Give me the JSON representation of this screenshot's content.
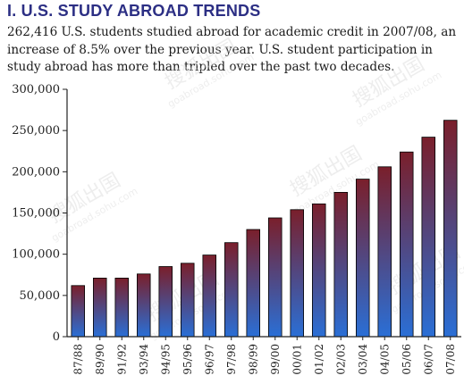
{
  "header": {
    "heading": "I.  U.S. STUDY ABROAD TRENDS",
    "intro": "262,416 U.S. students studied abroad for academic credit in 2007/08, an increase of 8.5% over the previous year.  U.S. student participation in study abroad has more than tripled over the past two decades."
  },
  "watermark": {
    "cn": "搜狐出国",
    "url": "goabroad.sohu.com"
  },
  "colors": {
    "bar_top": "#7a1f2b",
    "bar_bottom": "#2a6fd6",
    "axis": "#222222",
    "title": "#2c2f84"
  },
  "chart_data": {
    "type": "bar",
    "title": "",
    "xlabel": "",
    "ylabel": "",
    "ylim": [
      0,
      300000
    ],
    "yticks": [
      0,
      50000,
      100000,
      150000,
      200000,
      250000,
      300000
    ],
    "ytick_labels": [
      "0",
      "50,000",
      "100,000",
      "150,000",
      "200,000",
      "250,000",
      "300,000"
    ],
    "grid": false,
    "categories": [
      "87/88",
      "89/90",
      "91/92",
      "93/94",
      "94/95",
      "95/96",
      "96/97",
      "97/98",
      "98/99",
      "99/00",
      "00/01",
      "01/02",
      "02/03",
      "03/04",
      "04/05",
      "05/06",
      "06/07",
      "07/08"
    ],
    "values": [
      62000,
      71000,
      71000,
      76000,
      85000,
      89000,
      99000,
      114000,
      130000,
      144000,
      154000,
      161000,
      175000,
      191000,
      206000,
      224000,
      242000,
      262416
    ]
  }
}
